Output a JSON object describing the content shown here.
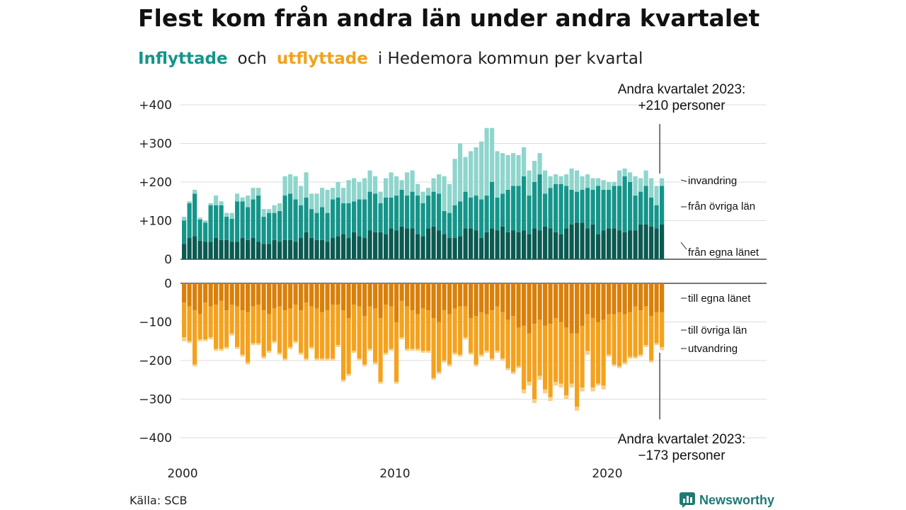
{
  "header": {
    "title": "Flest kom från andra län under andra kvartalet",
    "subtitle_in": "Inflyttade",
    "subtitle_and": "och",
    "subtitle_out": "utflyttade",
    "subtitle_rest": "i Hedemora  kommun  per  kvartal"
  },
  "footer": {
    "source": "Källa: SCB",
    "brand": "Newsworthy"
  },
  "colors": {
    "in_own_county": "#0b5a51",
    "in_other_counties": "#15958a",
    "in_immigration": "#8fd5cc",
    "out_own_county": "#d9800a",
    "out_other_counties": "#f4a21e",
    "out_emigration": "#f8d08a",
    "brand": "#1d7a74"
  },
  "chart_data": {
    "type": "bar",
    "stacked": true,
    "x_start": "2000 Q1",
    "x_ticks": [
      "2000",
      "2010",
      "2020"
    ],
    "y_ticks_top": [
      "+400",
      "+300",
      "+200",
      "+100",
      "0"
    ],
    "y_ticks_bottom": [
      "0",
      "−100",
      "−200",
      "−300",
      "−400"
    ],
    "ylim": [
      -400,
      400
    ],
    "grid": true,
    "series_in": [
      {
        "name": "från egna länet",
        "values": [
          40,
          55,
          60,
          48,
          45,
          45,
          55,
          50,
          50,
          45,
          45,
          55,
          50,
          55,
          45,
          40,
          40,
          50,
          45,
          50,
          50,
          45,
          55,
          70,
          55,
          50,
          50,
          45,
          55,
          60,
          65,
          55,
          70,
          60,
          55,
          75,
          70,
          70,
          65,
          80,
          75,
          85,
          80,
          80,
          65,
          60,
          80,
          85,
          75,
          65,
          55,
          55,
          60,
          80,
          80,
          75,
          55,
          70,
          80,
          75,
          85,
          70,
          75,
          70,
          75,
          65,
          80,
          75,
          85,
          80,
          70,
          65,
          80,
          90,
          95,
          95,
          80,
          90,
          65,
          75,
          80,
          80,
          75,
          70,
          75,
          75,
          90,
          90,
          85,
          80,
          90
        ]
      },
      {
        "name": "från övriga län",
        "values": [
          60,
          90,
          110,
          55,
          50,
          95,
          85,
          90,
          60,
          60,
          105,
          95,
          85,
          100,
          120,
          70,
          80,
          70,
          80,
          115,
          120,
          110,
          85,
          90,
          75,
          70,
          85,
          75,
          100,
          100,
          80,
          90,
          80,
          95,
          100,
          100,
          100,
          75,
          95,
          80,
          90,
          95,
          85,
          95,
          100,
          85,
          85,
          90,
          95,
          60,
          65,
          85,
          90,
          95,
          80,
          90,
          100,
          95,
          120,
          85,
          85,
          110,
          115,
          120,
          140,
          100,
          120,
          145,
          85,
          105,
          125,
          130,
          110,
          90,
          80,
          85,
          105,
          90,
          125,
          105,
          100,
          110,
          115,
          145,
          125,
          90,
          85,
          100,
          75,
          60,
          100
        ]
      },
      {
        "name": "invandring",
        "values": [
          10,
          5,
          10,
          5,
          5,
          5,
          25,
          10,
          10,
          15,
          20,
          10,
          30,
          30,
          20,
          20,
          10,
          20,
          20,
          50,
          50,
          60,
          50,
          65,
          40,
          50,
          50,
          60,
          30,
          40,
          40,
          60,
          60,
          45,
          55,
          55,
          45,
          30,
          50,
          65,
          50,
          25,
          60,
          55,
          30,
          30,
          20,
          35,
          50,
          90,
          75,
          120,
          150,
          90,
          120,
          125,
          150,
          175,
          140,
          120,
          105,
          90,
          85,
          80,
          75,
          65,
          55,
          55,
          60,
          30,
          25,
          20,
          30,
          55,
          55,
          35,
          35,
          30,
          20,
          25,
          20,
          10,
          40,
          20,
          25,
          50,
          35,
          40,
          50,
          50,
          20
        ]
      }
    ],
    "series_out": [
      {
        "name": "till egna länet",
        "values": [
          50,
          60,
          70,
          80,
          50,
          60,
          55,
          45,
          70,
          55,
          60,
          70,
          75,
          60,
          55,
          70,
          80,
          65,
          60,
          70,
          65,
          55,
          70,
          50,
          60,
          65,
          75,
          70,
          55,
          55,
          70,
          90,
          55,
          60,
          85,
          60,
          65,
          90,
          55,
          60,
          100,
          45,
          60,
          70,
          80,
          65,
          70,
          90,
          100,
          70,
          80,
          65,
          60,
          60,
          90,
          85,
          75,
          80,
          70,
          60,
          75,
          95,
          85,
          115,
          110,
          130,
          105,
          95,
          110,
          105,
          90,
          100,
          115,
          130,
          130,
          110,
          80,
          90,
          100,
          95,
          80,
          80,
          75,
          80,
          75,
          60,
          70,
          60,
          85,
          75,
          75
        ]
      },
      {
        "name": "till övriga län",
        "values": [
          90,
          90,
          140,
          65,
          95,
          80,
          115,
          125,
          95,
          75,
          105,
          115,
          130,
          95,
          100,
          120,
          95,
          85,
          120,
          125,
          100,
          95,
          110,
          145,
          105,
          130,
          120,
          125,
          140,
          105,
          180,
          145,
          120,
          135,
          125,
          110,
          140,
          165,
          125,
          110,
          155,
          95,
          110,
          100,
          90,
          110,
          105,
          155,
          130,
          130,
          130,
          115,
          125,
          80,
          90,
          125,
          110,
          95,
          125,
          115,
          120,
          125,
          145,
          100,
          165,
          125,
          195,
          145,
          165,
          190,
          165,
          160,
          175,
          130,
          190,
          160,
          95,
          180,
          160,
          170,
          105,
          130,
          140,
          125,
          115,
          130,
          115,
          100,
          115,
          80,
          90
        ]
      },
      {
        "name": "utvandring",
        "values": [
          10,
          5,
          5,
          5,
          5,
          5,
          5,
          5,
          5,
          5,
          5,
          5,
          5,
          5,
          5,
          5,
          5,
          5,
          5,
          5,
          5,
          5,
          5,
          5,
          5,
          5,
          5,
          5,
          5,
          5,
          5,
          5,
          5,
          5,
          5,
          5,
          5,
          5,
          5,
          5,
          5,
          5,
          5,
          5,
          5,
          5,
          5,
          5,
          5,
          5,
          5,
          5,
          5,
          5,
          5,
          5,
          5,
          5,
          5,
          5,
          5,
          5,
          5,
          5,
          10,
          10,
          10,
          10,
          10,
          10,
          10,
          10,
          10,
          10,
          10,
          10,
          10,
          10,
          5,
          10,
          5,
          5,
          5,
          5,
          5,
          5,
          5,
          5,
          5,
          5,
          8
        ]
      }
    ],
    "legend": {
      "in": [
        "invandring",
        "från övriga län",
        "från egna länet"
      ],
      "out": [
        "till egna länet",
        "till övriga län",
        "utvandring"
      ]
    },
    "annotations": {
      "top": [
        "Andra kvartalet 2023:",
        "+210 personer"
      ],
      "bottom": [
        "Andra kvartalet 2023:",
        "−173 personer"
      ]
    }
  }
}
